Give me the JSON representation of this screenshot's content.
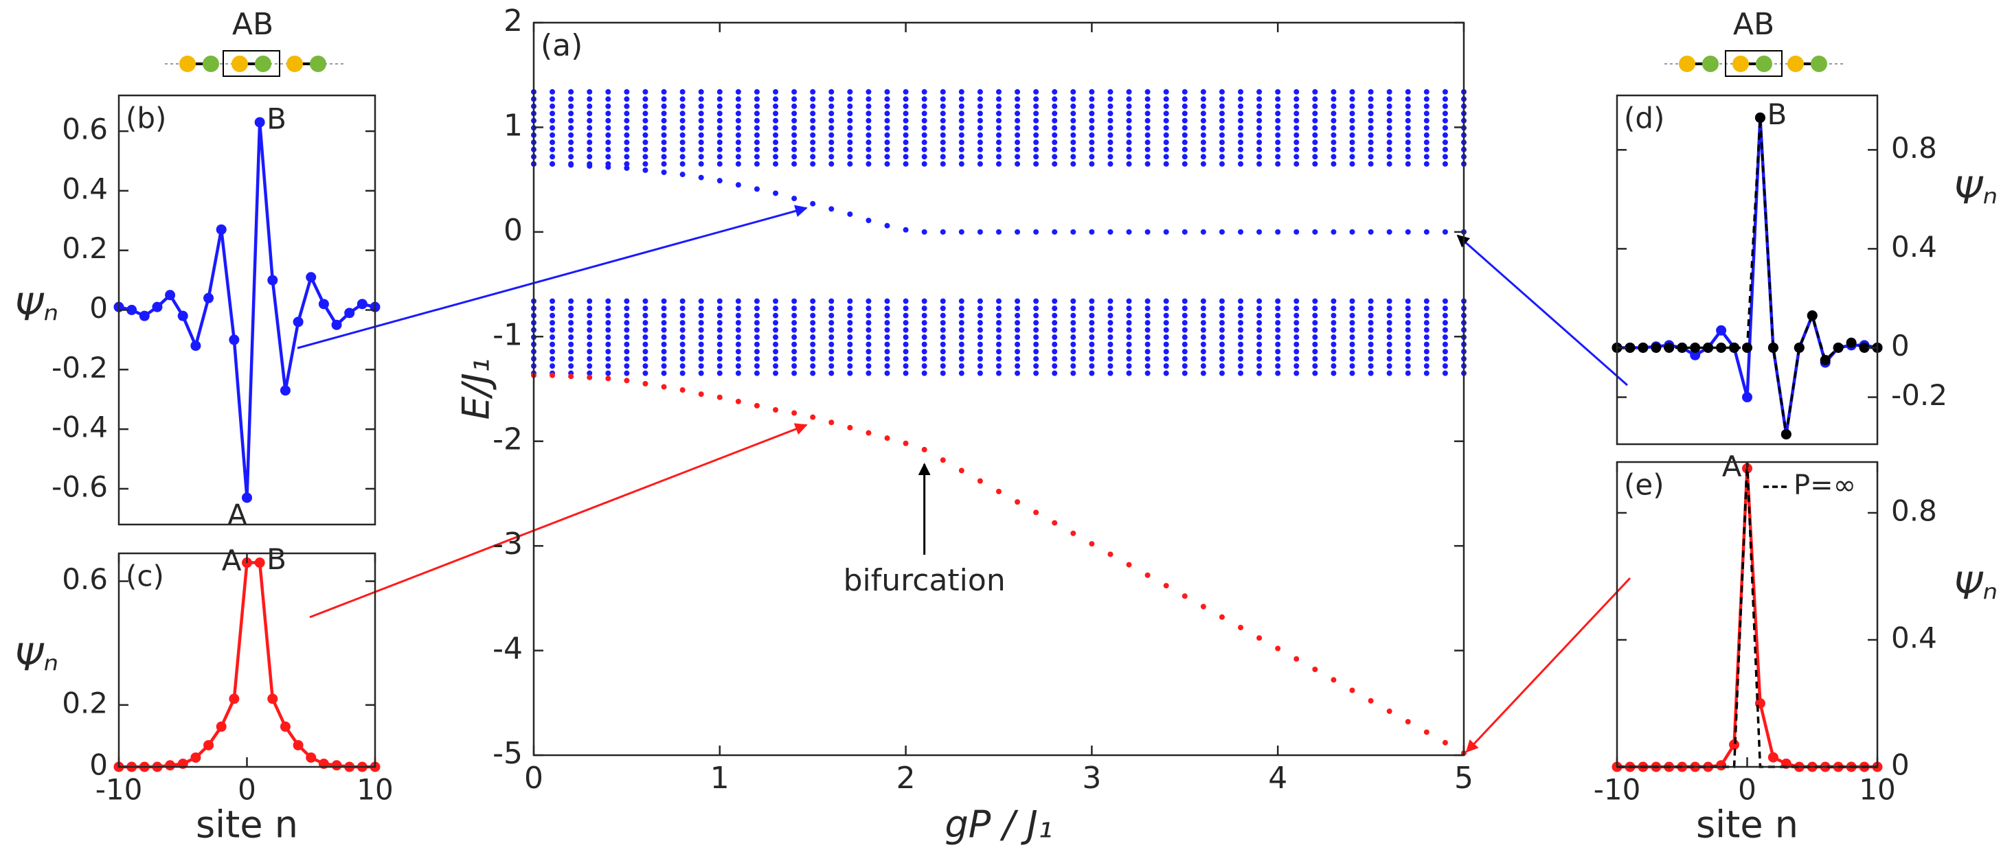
{
  "chart_data": [
    {
      "type": "line",
      "panel_label": "(a)",
      "xlabel": "gP / J₁",
      "ylabel": "E/J₁",
      "xlim": [
        0,
        5
      ],
      "ylim": [
        -5,
        2
      ],
      "xticks": [
        0,
        1,
        2,
        3,
        4,
        5
      ],
      "yticks": [
        -5,
        -4,
        -3,
        -2,
        -1,
        0,
        1,
        2
      ],
      "x": [
        0,
        0.1,
        0.2,
        0.3,
        0.4,
        0.5,
        0.6,
        0.7,
        0.8,
        0.9,
        1,
        1.1,
        1.2,
        1.3,
        1.4,
        1.5,
        1.6,
        1.7,
        1.8,
        1.9,
        2,
        2.1,
        2.2,
        2.3,
        2.4,
        2.5,
        2.6,
        2.7,
        2.8,
        2.9,
        3,
        3.1,
        3.2,
        3.3,
        3.4,
        3.5,
        3.6,
        3.7,
        3.8,
        3.9,
        4,
        4.1,
        4.2,
        4.3,
        4.4,
        4.5,
        4.6,
        4.7,
        4.8,
        4.9,
        5
      ],
      "bands": [
        {
          "low": 0.65,
          "high": 1.35,
          "color": "#1a1aff"
        },
        {
          "low": -1.35,
          "high": -0.65,
          "color": "#1a1aff"
        }
      ],
      "series": [
        {
          "color": "#1a1aff",
          "linestyle": "none",
          "marker": true,
          "values": [
            0.65,
            0.65,
            0.64,
            0.63,
            0.62,
            0.61,
            0.59,
            0.57,
            0.55,
            0.52,
            0.49,
            0.45,
            0.41,
            0.37,
            0.32,
            0.27,
            0.22,
            0.17,
            0.11,
            0.06,
            0.02,
            0,
            0,
            0,
            0,
            0,
            0,
            0,
            0,
            0,
            0,
            0,
            0,
            0,
            0,
            0,
            0,
            0,
            0,
            0,
            0,
            0,
            0,
            0,
            0,
            0,
            0,
            0,
            0,
            0,
            0
          ]
        },
        {
          "color": "#ff1a1a",
          "linestyle": "none",
          "marker": true,
          "values": [
            -1.37,
            -1.37,
            -1.38,
            -1.39,
            -1.4,
            -1.42,
            -1.45,
            -1.48,
            -1.51,
            -1.55,
            -1.58,
            -1.62,
            -1.66,
            -1.7,
            -1.73,
            -1.77,
            -1.82,
            -1.87,
            -1.92,
            -1.97,
            -2.02,
            -2.08,
            -2.18,
            -2.28,
            -2.38,
            -2.48,
            -2.58,
            -2.68,
            -2.78,
            -2.88,
            -2.98,
            -3.08,
            -3.18,
            -3.28,
            -3.38,
            -3.48,
            -3.58,
            -3.68,
            -3.78,
            -3.88,
            -3.98,
            -4.08,
            -4.18,
            -4.28,
            -4.38,
            -4.48,
            -4.58,
            -4.68,
            -4.78,
            -4.88,
            -4.98
          ]
        }
      ],
      "annotations": [
        {
          "text": "bifurcation",
          "x": 2.1,
          "y": -2.1
        }
      ]
    },
    {
      "type": "line",
      "panel_label": "(b)",
      "schematic_label": "AB",
      "ylabel": "Ψₙ",
      "y_axis_side": "left",
      "xlim": [
        -10,
        10
      ],
      "ylim": [
        -0.72,
        0.72
      ],
      "yticks": [
        -0.6,
        -0.4,
        -0.2,
        0,
        0.2,
        0.4,
        0.6
      ],
      "x": [
        -10,
        -9,
        -8,
        -7,
        -6,
        -5,
        -4,
        -3,
        -2,
        -1,
        0,
        1,
        2,
        3,
        4,
        5,
        6,
        7,
        8,
        9,
        10
      ],
      "series": [
        {
          "color": "#1a1aff",
          "linestyle": "solid",
          "marker": true,
          "values": [
            0.01,
            0,
            -0.02,
            0.01,
            0.05,
            -0.02,
            -0.12,
            0.04,
            0.27,
            -0.1,
            -0.63,
            0.63,
            0.1,
            -0.27,
            -0.04,
            0.11,
            0.02,
            -0.05,
            -0.01,
            0.02,
            0.01
          ]
        }
      ],
      "annotations": [
        {
          "text": "A",
          "x": 0,
          "position": "below"
        },
        {
          "text": "B",
          "x": 1,
          "position": "above-right"
        }
      ]
    },
    {
      "type": "line",
      "panel_label": "(c)",
      "xlabel": "site n",
      "ylabel": "Ψₙ",
      "y_axis_side": "left",
      "xlim": [
        -10,
        10
      ],
      "ylim": [
        0,
        0.69
      ],
      "xticks": [
        -10,
        0,
        10
      ],
      "yticks": [
        0,
        0.2,
        0.6
      ],
      "x": [
        -10,
        -9,
        -8,
        -7,
        -6,
        -5,
        -4,
        -3,
        -2,
        -1,
        0,
        1,
        2,
        3,
        4,
        5,
        6,
        7,
        8,
        9,
        10
      ],
      "series": [
        {
          "color": "#ff1a1a",
          "linestyle": "solid",
          "marker": true,
          "values": [
            0,
            0,
            0,
            0,
            0.005,
            0.01,
            0.03,
            0.07,
            0.13,
            0.22,
            0.66,
            0.66,
            0.22,
            0.13,
            0.07,
            0.03,
            0.01,
            0.005,
            0,
            0,
            0
          ]
        }
      ],
      "annotations": [
        {
          "text": "A",
          "x": 0,
          "position": "above-left"
        },
        {
          "text": "B",
          "x": 1,
          "position": "above-right"
        }
      ]
    },
    {
      "type": "line",
      "panel_label": "(d)",
      "schematic_label": "AB",
      "ylabel": "Ψₙ",
      "y_axis_side": "right",
      "xlim": [
        -10,
        10
      ],
      "ylim": [
        -0.39,
        1.02
      ],
      "yticks": [
        -0.2,
        0,
        0.4,
        0.8
      ],
      "x": [
        -10,
        -9,
        -8,
        -7,
        -6,
        -5,
        -4,
        -3,
        -2,
        -1,
        0,
        1,
        2,
        3,
        4,
        5,
        6,
        7,
        8,
        9,
        10
      ],
      "series": [
        {
          "color": "#1a1aff",
          "linestyle": "solid",
          "marker": true,
          "values": [
            0,
            0,
            0,
            0.005,
            0.01,
            0,
            -0.03,
            0,
            0.07,
            0,
            -0.2,
            0.93,
            0,
            -0.35,
            0,
            0.13,
            -0.06,
            0,
            0.01,
            0.01,
            0
          ]
        },
        {
          "color": "#000000",
          "linestyle": "dashed",
          "marker": true,
          "values": [
            0,
            0,
            0,
            0,
            0,
            0,
            0,
            0,
            0,
            0,
            0,
            0.93,
            0,
            -0.35,
            0,
            0.13,
            -0.05,
            0,
            0.02,
            0,
            0
          ]
        }
      ],
      "annotations": [
        {
          "text": "B",
          "x": 1,
          "position": "above-right"
        }
      ]
    },
    {
      "type": "line",
      "panel_label": "(e)",
      "xlabel": "site n",
      "ylabel": "Ψₙ",
      "y_axis_side": "right",
      "legend": "upper right",
      "xlim": [
        -10,
        10
      ],
      "ylim": [
        0,
        0.96
      ],
      "xticks": [
        -10,
        0,
        10
      ],
      "yticks": [
        0,
        0.4,
        0.8
      ],
      "x": [
        -10,
        -9,
        -8,
        -7,
        -6,
        -5,
        -4,
        -3,
        -2,
        -1,
        0,
        1,
        2,
        3,
        4,
        5,
        6,
        7,
        8,
        9,
        10
      ],
      "series": [
        {
          "color": "#ff1a1a",
          "linestyle": "solid",
          "marker": true,
          "values": [
            0,
            0,
            0,
            0,
            0,
            0,
            0,
            0,
            0.005,
            0.07,
            0.94,
            0.2,
            0.03,
            0.01,
            0,
            0,
            0,
            0,
            0,
            0,
            0
          ]
        },
        {
          "name": "P=∞",
          "color": "#000000",
          "linestyle": "dashed",
          "marker": false,
          "values": [
            0,
            0,
            0,
            0,
            0,
            0,
            0,
            0,
            0,
            0,
            0.96,
            0,
            0,
            0,
            0,
            0,
            0,
            0,
            0,
            0,
            0
          ]
        }
      ],
      "annotations": [
        {
          "text": "A",
          "x": 0,
          "position": "above-left"
        }
      ]
    }
  ]
}
